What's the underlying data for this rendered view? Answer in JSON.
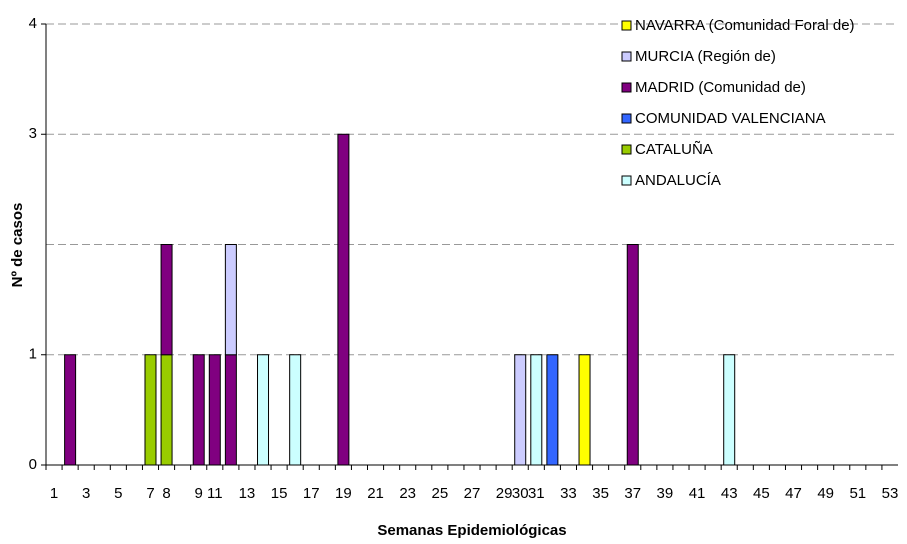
{
  "chart_data": {
    "type": "stacked_bar",
    "x_label": "Semanas Epidemiológicas",
    "y_label": "Nº de casos",
    "categories": [
      "1",
      null,
      "3",
      null,
      "5",
      null,
      "7",
      "8",
      null,
      "9",
      "11",
      null,
      "13",
      null,
      "15",
      null,
      "17",
      null,
      "19",
      null,
      "21",
      null,
      "23",
      null,
      "25",
      null,
      "27",
      null,
      "29",
      "30",
      "31",
      null,
      "33",
      null,
      "35",
      null,
      "37",
      null,
      "39",
      null,
      "41",
      null,
      "43",
      null,
      "45",
      null,
      "47",
      null,
      "49",
      null,
      "51",
      null,
      "53"
    ],
    "ylim": [
      0,
      4
    ],
    "yticks": [
      0,
      1,
      3,
      4
    ],
    "ygrid": [
      1,
      2,
      3,
      4
    ],
    "grid": true,
    "legend": "top-right",
    "series": [
      {
        "name": "ANDALUCÍA",
        "color": "#ccffff",
        "values": [
          null,
          null,
          null,
          null,
          null,
          null,
          null,
          null,
          null,
          null,
          null,
          null,
          null,
          1,
          null,
          1,
          null,
          null,
          null,
          null,
          null,
          null,
          null,
          null,
          null,
          null,
          null,
          null,
          null,
          null,
          1,
          null,
          null,
          null,
          null,
          null,
          null,
          null,
          null,
          null,
          null,
          null,
          1,
          null,
          null,
          null,
          null,
          null,
          null,
          null,
          null,
          null,
          null
        ]
      },
      {
        "name": "CATALUÑA",
        "color": "#99cc00",
        "values": [
          null,
          null,
          null,
          null,
          null,
          null,
          1,
          1,
          null,
          null,
          null,
          null,
          null,
          null,
          null,
          null,
          null,
          null,
          null,
          null,
          null,
          null,
          null,
          null,
          null,
          null,
          null,
          null,
          null,
          null,
          null,
          null,
          null,
          null,
          null,
          null,
          null,
          null,
          null,
          null,
          null,
          null,
          null,
          null,
          null,
          null,
          null,
          null,
          null,
          null,
          null,
          null,
          null
        ]
      },
      {
        "name": "COMUNIDAD VALENCIANA",
        "color": "#3366ff",
        "values": [
          null,
          null,
          null,
          null,
          null,
          null,
          null,
          null,
          null,
          null,
          null,
          null,
          null,
          null,
          null,
          null,
          null,
          null,
          null,
          null,
          null,
          null,
          null,
          null,
          null,
          null,
          null,
          null,
          null,
          null,
          null,
          1,
          null,
          null,
          null,
          null,
          null,
          null,
          null,
          null,
          null,
          null,
          null,
          null,
          null,
          null,
          null,
          null,
          null,
          null,
          null,
          null,
          null
        ]
      },
      {
        "name": "MADRID (Comunidad de)",
        "color": "#800080",
        "values": [
          null,
          1,
          null,
          null,
          null,
          null,
          null,
          1,
          null,
          1,
          1,
          1,
          null,
          null,
          null,
          null,
          null,
          null,
          3,
          null,
          null,
          null,
          null,
          null,
          null,
          null,
          null,
          null,
          null,
          null,
          null,
          null,
          null,
          null,
          null,
          null,
          2,
          null,
          null,
          null,
          null,
          null,
          null,
          null,
          null,
          null,
          null,
          null,
          null,
          null,
          null,
          null,
          null
        ]
      },
      {
        "name": "MURCIA (Región de)",
        "color": "#ccccff",
        "values": [
          null,
          null,
          null,
          null,
          null,
          null,
          null,
          null,
          null,
          null,
          null,
          1,
          null,
          null,
          null,
          null,
          null,
          null,
          null,
          null,
          null,
          null,
          null,
          null,
          null,
          null,
          null,
          null,
          null,
          1,
          null,
          null,
          null,
          null,
          null,
          null,
          null,
          null,
          null,
          null,
          null,
          null,
          null,
          null,
          null,
          null,
          null,
          null,
          null,
          null,
          null,
          null,
          null
        ]
      },
      {
        "name": "NAVARRA (Comunidad Foral de)",
        "color": "#ffff00",
        "values": [
          null,
          null,
          null,
          null,
          null,
          null,
          null,
          null,
          null,
          null,
          null,
          null,
          null,
          null,
          null,
          null,
          null,
          null,
          null,
          null,
          null,
          null,
          null,
          null,
          null,
          null,
          null,
          null,
          null,
          null,
          null,
          null,
          null,
          1,
          null,
          null,
          null,
          null,
          null,
          null,
          null,
          null,
          null,
          null,
          null,
          null,
          null,
          null,
          null,
          null,
          null,
          null,
          null
        ]
      }
    ]
  }
}
